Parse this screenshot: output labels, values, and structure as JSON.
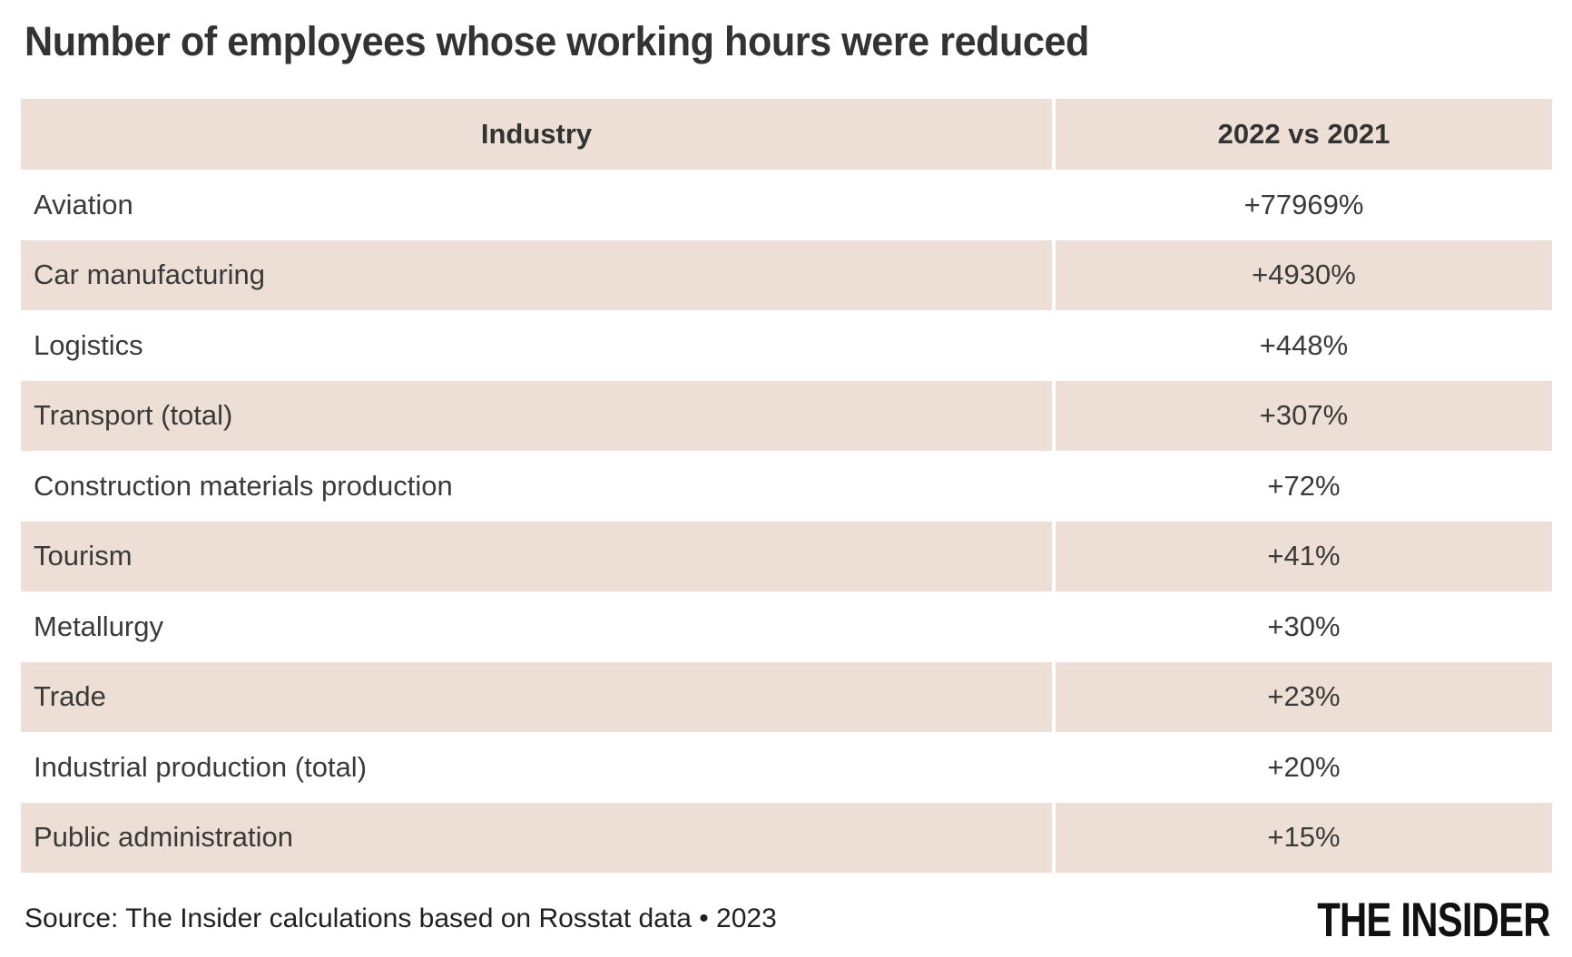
{
  "title": "Number of employees whose working hours were reduced",
  "table": {
    "columns": [
      "Industry",
      "2022 vs 2021"
    ],
    "rows": [
      {
        "industry": "Aviation",
        "change": "+77969%"
      },
      {
        "industry": "Car manufacturing",
        "change": "+4930%"
      },
      {
        "industry": "Logistics",
        "change": "+448%"
      },
      {
        "industry": "Transport (total)",
        "change": "+307%"
      },
      {
        "industry": "Construction materials production",
        "change": "+72%"
      },
      {
        "industry": "Tourism",
        "change": "+41%"
      },
      {
        "industry": "Metallurgy",
        "change": "+30%"
      },
      {
        "industry": "Trade",
        "change": "+23%"
      },
      {
        "industry": "Industrial production (total)",
        "change": "+20%"
      },
      {
        "industry": "Public administration",
        "change": "+15%"
      }
    ]
  },
  "footer": {
    "source": "Source: The Insider calculations based on Rosstat data • 2023",
    "logo": "THE INSIDER"
  },
  "colors": {
    "row_accent": "#eddfd5",
    "text": "#3a3a3a",
    "logo": "#111111"
  },
  "chart_data": {
    "type": "table",
    "title": "Number of employees whose working hours were reduced",
    "columns": [
      "Industry",
      "2022 vs 2021"
    ],
    "categories": [
      "Aviation",
      "Car manufacturing",
      "Logistics",
      "Transport (total)",
      "Construction materials production",
      "Tourism",
      "Metallurgy",
      "Trade",
      "Industrial production (total)",
      "Public administration"
    ],
    "values": [
      77969,
      4930,
      448,
      307,
      72,
      41,
      30,
      23,
      20,
      15
    ],
    "values_unit": "percent_change",
    "values_display": [
      "+77969%",
      "+4930%",
      "+448%",
      "+307%",
      "+72%",
      "+41%",
      "+30%",
      "+23%",
      "+20%",
      "+15%"
    ],
    "source": "Source: The Insider calculations based on Rosstat data • 2023"
  }
}
